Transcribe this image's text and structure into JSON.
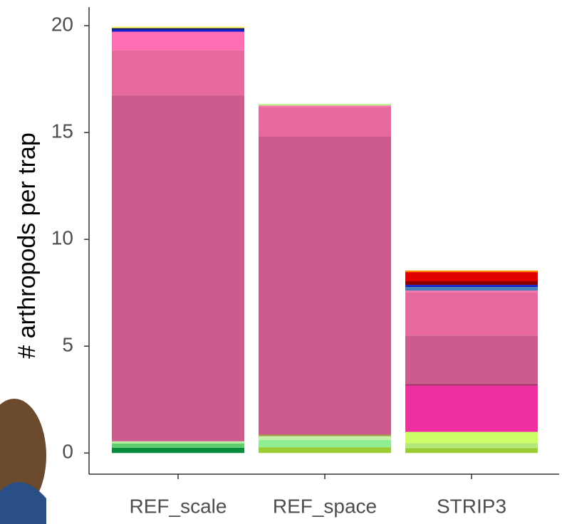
{
  "chart_data": {
    "type": "stacked_bar",
    "y_label": "# arthropods per trap",
    "categories": [
      "REF_scale",
      "REF_space",
      "STRIP3"
    ],
    "segments": [
      [
        {
          "color": "#0b8a3c",
          "value": 0.25
        },
        {
          "color": "#5fcf6f",
          "value": 0.2
        },
        {
          "color": "#b7f0a0",
          "value": 0.1
        },
        {
          "color": "#cc5c8e",
          "value": 16.2
        },
        {
          "color": "#e8699e",
          "value": 2.1
        },
        {
          "color": "#ff6eb4",
          "value": 0.87
        },
        {
          "color": "#1020d0",
          "value": 0.1
        },
        {
          "color": "#202060",
          "value": 0.07
        },
        {
          "color": "#ffff66",
          "value": 0.07
        }
      ],
      [
        {
          "color": "#9acd32",
          "value": 0.27
        },
        {
          "color": "#90ee90",
          "value": 0.35
        },
        {
          "color": "#c5f0a8",
          "value": 0.17
        },
        {
          "color": "#a0a040",
          "value": 0.07
        },
        {
          "color": "#cc5c8e",
          "value": 13.96
        },
        {
          "color": "#e8699e",
          "value": 1.37
        },
        {
          "color": "#ff6eb4",
          "value": 0.07
        },
        {
          "color": "#b0f080",
          "value": 0.07
        }
      ],
      [
        {
          "color": "#9acd32",
          "value": 0.23
        },
        {
          "color": "#b5e87a",
          "value": 0.23
        },
        {
          "color": "#ccff66",
          "value": 0.53
        },
        {
          "color": "#ee2fa0",
          "value": 2.17
        },
        {
          "color": "#a03060",
          "value": 0.07
        },
        {
          "color": "#cc5c8e",
          "value": 2.27
        },
        {
          "color": "#e8699e",
          "value": 2.03
        },
        {
          "color": "#ff6eb4",
          "value": 0.07
        },
        {
          "color": "#4682b4",
          "value": 0.17
        },
        {
          "color": "#1020d0",
          "value": 0.1
        },
        {
          "color": "#8b0000",
          "value": 0.17
        },
        {
          "color": "#e00000",
          "value": 0.43
        },
        {
          "color": "#ff8c00",
          "value": 0.07
        }
      ]
    ],
    "ylim": [
      -0.99,
      20.87
    ],
    "yticks": [
      0,
      5,
      10,
      15,
      20
    ]
  }
}
